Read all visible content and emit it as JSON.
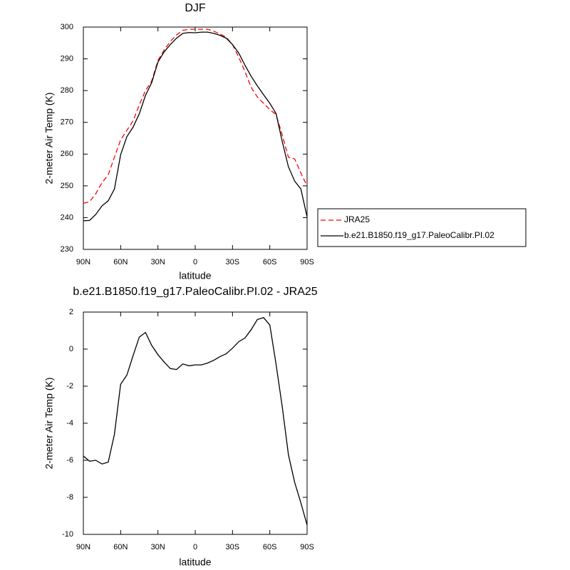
{
  "chart_data": [
    {
      "type": "line",
      "title": "DJF",
      "xlabel": "latitude",
      "ylabel": "2-meter Air Temp (K)",
      "x": [
        90,
        85,
        80,
        75,
        70,
        65,
        60,
        55,
        50,
        45,
        40,
        35,
        30,
        25,
        20,
        15,
        10,
        5,
        0,
        -5,
        -10,
        -15,
        -20,
        -25,
        -30,
        -35,
        -40,
        -45,
        -50,
        -55,
        -60,
        -65,
        -70,
        -75,
        -80,
        -85,
        -90
      ],
      "series": [
        {
          "name": "JRA25",
          "color": "#ff0000",
          "style": "dashed",
          "values": [
            244.5,
            245,
            247.5,
            251,
            253.5,
            259,
            264.5,
            267.5,
            270.5,
            275.5,
            280,
            283,
            289.5,
            292.8,
            295.5,
            297.5,
            299,
            299.3,
            299.3,
            299.3,
            299.3,
            298.7,
            297.8,
            296.8,
            294.5,
            290.5,
            286,
            281,
            278,
            276,
            274,
            272.5,
            266,
            259,
            258.5,
            254,
            250
          ]
        },
        {
          "name": "b.e21.B1850.f19_g17.PaleoCalibr.PI.02",
          "color": "#000000",
          "style": "solid",
          "values": [
            239,
            239.1,
            241,
            243.7,
            245.3,
            249,
            259.8,
            265.5,
            268.5,
            272.7,
            278.5,
            282.5,
            289,
            292.2,
            294.5,
            296.5,
            298,
            298.3,
            298.2,
            298.4,
            298.4,
            298,
            297.4,
            296.5,
            294.5,
            291.8,
            288,
            284.5,
            281.5,
            278.7,
            276,
            272.8,
            264,
            256,
            251.5,
            249,
            240.2
          ]
        }
      ],
      "xlim": [
        90,
        -90
      ],
      "xticks": [
        {
          "value": 90,
          "label": "90N"
        },
        {
          "value": 60,
          "label": "60N"
        },
        {
          "value": 30,
          "label": "30N"
        },
        0,
        {
          "value": -30,
          "label": "30S"
        },
        {
          "value": -60,
          "label": "60S"
        },
        {
          "value": -90,
          "label": "90S"
        }
      ],
      "ylim": [
        230,
        300
      ],
      "yticks": [
        230,
        240,
        250,
        260,
        270,
        280,
        290,
        300
      ],
      "legend": "right"
    },
    {
      "type": "line",
      "title": "b.e21.B1850.f19_g17.PaleoCalibr.PI.02 - JRA25",
      "xlabel": "latitude",
      "ylabel": "2-meter Air Temp (K)",
      "x": [
        90,
        85,
        80,
        75,
        70,
        65,
        60,
        55,
        50,
        45,
        40,
        35,
        30,
        25,
        20,
        15,
        10,
        5,
        0,
        -5,
        -10,
        -15,
        -20,
        -25,
        -30,
        -35,
        -40,
        -45,
        -50,
        -55,
        -60,
        -65,
        -70,
        -75,
        -80,
        -85,
        -90
      ],
      "values": [
        -5.77,
        -6.05,
        -6,
        -6.2,
        -6.1,
        -4.6,
        -1.9,
        -1.4,
        -0.35,
        0.65,
        0.9,
        0.2,
        -0.3,
        -0.7,
        -1.05,
        -1.1,
        -0.8,
        -0.9,
        -0.85,
        -0.85,
        -0.75,
        -0.6,
        -0.4,
        -0.25,
        0.05,
        0.4,
        0.6,
        1.05,
        1.6,
        1.7,
        1.3,
        -0.8,
        -3.1,
        -5.7,
        -7.2,
        -8.3,
        -9.5
      ],
      "color": "#000000",
      "xlim": [
        90,
        -90
      ],
      "xticks": [
        {
          "value": 90,
          "label": "90N"
        },
        {
          "value": 60,
          "label": "60N"
        },
        {
          "value": 30,
          "label": "30N"
        },
        0,
        {
          "value": -30,
          "label": "30S"
        },
        {
          "value": -60,
          "label": "60S"
        },
        {
          "value": -90,
          "label": "90S"
        }
      ],
      "ylim": [
        -10,
        2
      ],
      "yticks": [
        -10,
        -8,
        -6,
        -4,
        -2,
        0,
        2
      ]
    }
  ]
}
